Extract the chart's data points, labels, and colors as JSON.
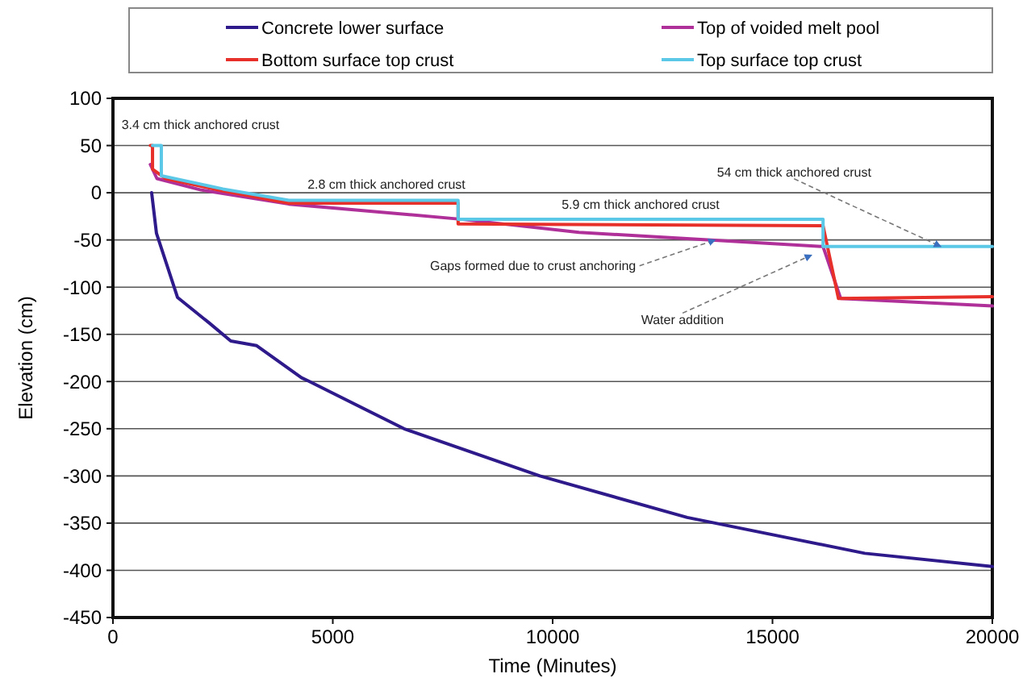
{
  "chart_data": {
    "type": "line",
    "xlabel": "Time (Minutes)",
    "ylabel": "Elevation (cm)",
    "xlim": [
      0,
      20000
    ],
    "xticks": [
      0,
      5000,
      10000,
      15000,
      20000
    ],
    "ylim": [
      -450,
      100
    ],
    "yticks": [
      -450,
      -400,
      -350,
      -300,
      -250,
      -200,
      -150,
      -100,
      -50,
      0,
      50,
      100
    ],
    "grid": "y",
    "legend": "top",
    "marker": "none",
    "line_style": "solid",
    "series": [
      {
        "name": "Concrete lower surface",
        "color": "#2e1a8a",
        "x": [
          880,
          990,
          1470,
          2190,
          2680,
          3270,
          4290,
          4470,
          6620,
          9710,
          13060,
          17100,
          20000
        ],
        "values": [
          0,
          -43,
          -111,
          -138,
          -157,
          -162,
          -196,
          -200,
          -250,
          -300,
          -344,
          -382,
          -396
        ]
      },
      {
        "name": "Top of voided melt pool",
        "color": "#b0309a",
        "x": [
          850,
          1000,
          2000,
          4000,
          7900,
          10600,
          16150,
          16550,
          20000
        ],
        "values": [
          30,
          15,
          3,
          -12,
          -28,
          -42,
          -57,
          -112,
          -120
        ]
      },
      {
        "name": "Bottom surface top crust",
        "color": "#e8302a",
        "x": [
          850,
          900,
          900,
          1200,
          2500,
          4000,
          7850,
          7850,
          16150,
          16500,
          20000
        ],
        "values": [
          50,
          50,
          25,
          15,
          2,
          -11,
          -11,
          -33,
          -35,
          -112,
          -110
        ]
      },
      {
        "name": "Top surface top crust",
        "color": "#5bc8e8",
        "x": [
          900,
          1100,
          1100,
          2500,
          4000,
          7850,
          7850,
          16150,
          16150,
          20000
        ],
        "values": [
          50,
          50,
          18,
          4,
          -8,
          -8,
          -28,
          -28,
          -57,
          -57
        ]
      }
    ],
    "annotations": [
      {
        "text": "3.4 cm thick anchored crust",
        "x": 1000,
        "y": 50
      },
      {
        "text": "2.8 cm thick anchored crust",
        "x": 6000,
        "y": -11
      },
      {
        "text": "5.9 cm thick anchored crust",
        "x": 12000,
        "y": -28
      },
      {
        "text": "Gaps formed due to crust anchoring",
        "x": 13700,
        "y": -50
      },
      {
        "text": "Water addition",
        "x": 15890,
        "y": -66
      },
      {
        "text": "54 cm thick anchored crust",
        "x": 18830,
        "y": -57
      }
    ]
  }
}
